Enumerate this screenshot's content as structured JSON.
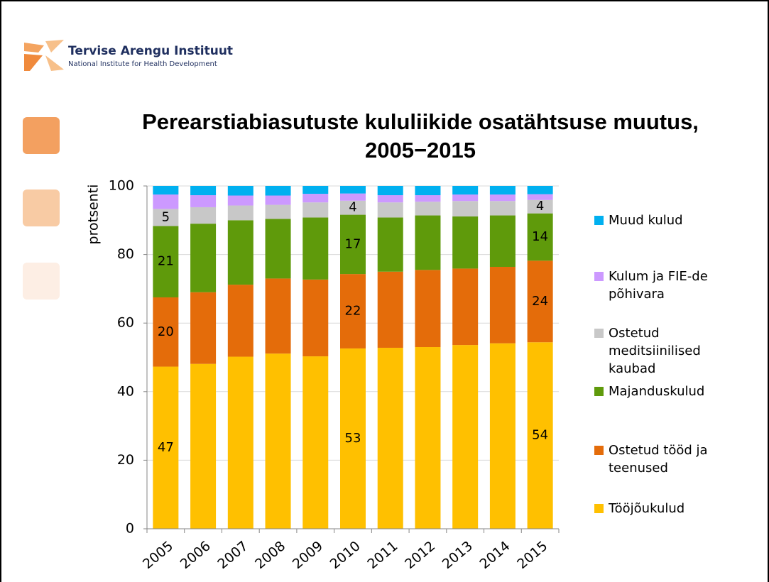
{
  "header": {
    "org_name": "Tervise Arengu Instituut",
    "org_subtitle": "National Institute for Health Development"
  },
  "chart_data": {
    "type": "stacked_bar",
    "title": "Perearstiabiasutuste kululiikide osatähtsuse muutus, 2005−2015",
    "y_label": "protsenti",
    "categories": [
      "2005",
      "2006",
      "2007",
      "2008",
      "2009",
      "2010",
      "2011",
      "2012",
      "2013",
      "2014",
      "2015"
    ],
    "ylim": [
      0,
      100
    ],
    "yticks": [
      0,
      20,
      40,
      60,
      80,
      100
    ],
    "grid": true,
    "legend": "right",
    "series": [
      {
        "name": "Tööjõukulud",
        "color": "#ffc000",
        "values": [
          47.3,
          48.1,
          50.2,
          51.1,
          50.3,
          52.6,
          52.8,
          53,
          53.6,
          54.1,
          54.4
        ],
        "value_labels": [
          "47",
          null,
          null,
          null,
          null,
          "53",
          null,
          null,
          null,
          null,
          "54"
        ]
      },
      {
        "name": "Ostetud tööd ja teenused",
        "color": "#e46c0a",
        "values": [
          20.2,
          20.9,
          21,
          21.9,
          22.4,
          21.7,
          22.2,
          22.5,
          22.3,
          22.3,
          23.8
        ],
        "value_labels": [
          "20",
          null,
          null,
          null,
          null,
          "22",
          null,
          null,
          null,
          null,
          "24"
        ]
      },
      {
        "name": "Majanduskulud",
        "color": "#5f9a0b",
        "values": [
          20.8,
          20,
          18.8,
          17.4,
          18.1,
          17.3,
          15.8,
          15.9,
          15.2,
          15,
          13.8
        ],
        "value_labels": [
          "21",
          null,
          null,
          null,
          null,
          "17",
          null,
          null,
          null,
          null,
          "14"
        ]
      },
      {
        "name": "Ostetud meditsiinilised kaubad",
        "color": "#c8c8c8",
        "values": [
          5,
          4.8,
          4.3,
          4.1,
          4.4,
          4.1,
          4.4,
          4,
          4.5,
          4.2,
          3.9
        ],
        "value_labels": [
          "5",
          null,
          null,
          null,
          null,
          "4",
          null,
          null,
          null,
          null,
          "4"
        ]
      },
      {
        "name": "Kulum ja FIE-de põhivara",
        "color": "#cc99ff",
        "values": [
          4.2,
          3.5,
          2.9,
          2.7,
          2.5,
          2.1,
          2.1,
          1.9,
          1.9,
          1.9,
          1.7
        ]
      },
      {
        "name": "Muud kulud",
        "color": "#00b0f0",
        "values": [
          2.5,
          2.7,
          2.8,
          2.8,
          2.3,
          2.2,
          2.7,
          2.7,
          2.5,
          2.5,
          2.4
        ]
      }
    ]
  }
}
